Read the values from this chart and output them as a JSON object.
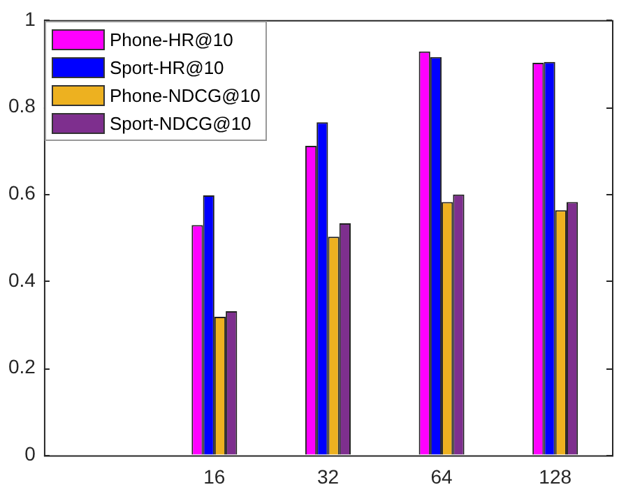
{
  "chart_data": {
    "type": "bar",
    "categories": [
      null,
      "16",
      "32",
      "64",
      "128"
    ],
    "series": [
      {
        "name": "Phone-HR@10",
        "color": "#ff00ff",
        "values": [
          null,
          0.529,
          0.711,
          0.928,
          0.902
        ]
      },
      {
        "name": "Sport-HR@10",
        "color": "#0000ff",
        "values": [
          null,
          0.597,
          0.765,
          0.915,
          0.904
        ]
      },
      {
        "name": "Phone-NDCG@10",
        "color": "#edb120",
        "values": [
          null,
          0.318,
          0.502,
          0.582,
          0.563
        ]
      },
      {
        "name": "Sport-NDCG@10",
        "color": "#7e2f8e",
        "values": [
          null,
          0.331,
          0.533,
          0.599,
          0.582
        ]
      }
    ],
    "ylim": [
      0,
      1
    ],
    "yticks": [
      0,
      0.2,
      0.4,
      0.6,
      0.8,
      1
    ],
    "grid": false,
    "legend": "top left"
  }
}
